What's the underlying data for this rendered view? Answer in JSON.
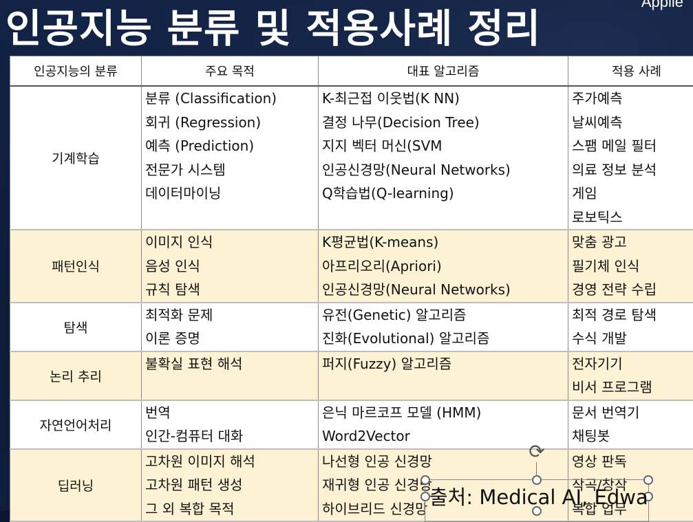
{
  "title": "인공지능 분류 및 적용사례 정리",
  "corner_text": "Applie",
  "table": {
    "headers": [
      "인공지능의 분류",
      "주요 목적",
      "대표 알고리즘",
      "적용 사례"
    ],
    "rows": [
      {
        "category": "기계학습",
        "purposes": [
          "분류 (Classification)",
          "회귀 (Regression)",
          "예측 (Prediction)",
          "전문가 시스템",
          "데이터마이닝"
        ],
        "algorithms": [
          "K-최근접 이웃법(K NN)",
          "결정 나무(Decision Tree)",
          "지지 벡터 머신(SVM",
          "인공신경망(Neural Networks)",
          "Q학습법(Q-learning)"
        ],
        "cases": [
          "주가예측",
          "날씨예측",
          "스팸 메일 필터",
          "의료 정보 분석",
          "게임",
          "로보틱스"
        ]
      },
      {
        "category": "패턴인식",
        "purposes": [
          "이미지 인식",
          "음성 인식",
          "규칙 탐색"
        ],
        "algorithms": [
          "K평균법(K-means)",
          "아프리오리(Apriori)",
          "인공신경망(Neural Networks)"
        ],
        "cases": [
          "맞춤 광고",
          "필기체 인식",
          "경영 전략 수립"
        ]
      },
      {
        "category": "탐색",
        "purposes": [
          "최적화 문제",
          "이론 증명"
        ],
        "algorithms": [
          "유전(Genetic) 알고리즘",
          "진화(Evolutional) 알고리즘"
        ],
        "cases": [
          "최적 경로 탐색",
          "수식 개발"
        ]
      },
      {
        "category": "논리 추리",
        "purposes": [
          "불확실 표현 해석"
        ],
        "algorithms": [
          "퍼지(Fuzzy) 알고리즘"
        ],
        "cases": [
          "전자기기",
          "비서 프로그램"
        ]
      },
      {
        "category": "자연언어처리",
        "purposes": [
          "번역",
          "인간-컴퓨터 대화"
        ],
        "algorithms": [
          "은닉 마르코프 모델 (HMM)",
          "Word2Vector"
        ],
        "cases": [
          "문서 번역기",
          "채팅봇"
        ]
      },
      {
        "category": "딥러닝",
        "purposes": [
          "고차원 이미지 해석",
          "고차원 패턴 생성",
          "그 외 복합 목적"
        ],
        "algorithms": [
          "나선형 인공 신경망",
          "재귀형 인공 신경망",
          "하이브리드 신경망"
        ],
        "cases": [
          "영상 판독",
          "작곡/창작",
          "복합 업무"
        ]
      }
    ]
  },
  "caption": "출처: Medical AI, Edwa"
}
